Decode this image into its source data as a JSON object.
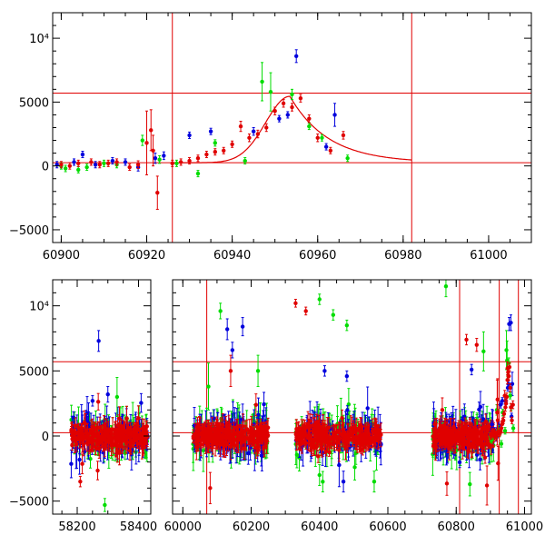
{
  "chart_data": [
    {
      "type": "scatter",
      "panel": "top",
      "xlim": [
        60898,
        61010
      ],
      "ylim": [
        -6000,
        12000
      ],
      "xticks": [
        60900,
        60920,
        60940,
        60960,
        60980,
        61000
      ],
      "yticks": [
        {
          "value": -5000,
          "label": "−5000"
        },
        {
          "value": 0,
          "label": "0"
        },
        {
          "value": 5000,
          "label": "5000"
        },
        {
          "value": 10000,
          "label": "10⁴"
        }
      ],
      "hlines": [
        5700,
        250
      ],
      "vlines": [
        60926,
        60982
      ],
      "model_curve": {
        "t0": 60953.5,
        "peak": 5450,
        "base": 250,
        "rise_days": 8,
        "decay_days": 9
      },
      "colors": {
        "blue": "#0000dd",
        "green": "#00dd00",
        "red": "#e00000"
      },
      "series": [
        {
          "color": "blue",
          "points": [
            [
              60899,
              100,
              250
            ],
            [
              60903,
              300,
              250
            ],
            [
              60905,
              900,
              250
            ],
            [
              60908,
              100,
              250
            ],
            [
              60912,
              400,
              250
            ],
            [
              60915,
              300,
              250
            ],
            [
              60918,
              -100,
              300
            ],
            [
              60922,
              600,
              400
            ],
            [
              60924,
              800,
              300
            ],
            [
              60930,
              2400,
              250
            ],
            [
              60935,
              2700,
              250
            ],
            [
              60945,
              2700,
              300
            ],
            [
              60951,
              3700,
              250
            ],
            [
              60953,
              4000,
              250
            ],
            [
              60955,
              8600,
              500
            ],
            [
              60962,
              1500,
              250
            ],
            [
              60964,
              4000,
              900
            ]
          ]
        },
        {
          "color": "green",
          "points": [
            [
              60900,
              0,
              250
            ],
            [
              60901,
              -200,
              250
            ],
            [
              60904,
              -300,
              250
            ],
            [
              60906,
              -100,
              250
            ],
            [
              60910,
              200,
              250
            ],
            [
              60913,
              100,
              250
            ],
            [
              60919,
              2000,
              400
            ],
            [
              60923,
              500,
              300
            ],
            [
              60927,
              200,
              250
            ],
            [
              60932,
              -600,
              250
            ],
            [
              60936,
              1800,
              250
            ],
            [
              60943,
              400,
              250
            ],
            [
              60947,
              6600,
              1500
            ],
            [
              60949,
              5800,
              1500
            ],
            [
              60954,
              5600,
              400
            ],
            [
              60958,
              3100,
              250
            ],
            [
              60961,
              2200,
              250
            ],
            [
              60967,
              600,
              250
            ]
          ]
        },
        {
          "color": "red",
          "points": [
            [
              60900,
              100,
              250
            ],
            [
              60902,
              0,
              250
            ],
            [
              60904,
              200,
              250
            ],
            [
              60907,
              300,
              250
            ],
            [
              60909,
              100,
              250
            ],
            [
              60911,
              200,
              250
            ],
            [
              60913,
              300,
              250
            ],
            [
              60916,
              -100,
              250
            ],
            [
              60918,
              100,
              300
            ],
            [
              60920,
              1800,
              2500
            ],
            [
              60921,
              2800,
              1600
            ],
            [
              60921.5,
              1200,
              1200
            ],
            [
              60922.5,
              -2100,
              1300
            ],
            [
              60926,
              200,
              250
            ],
            [
              60928,
              300,
              250
            ],
            [
              60930,
              400,
              250
            ],
            [
              60932,
              600,
              250
            ],
            [
              60934,
              900,
              250
            ],
            [
              60936,
              1100,
              250
            ],
            [
              60938,
              1200,
              250
            ],
            [
              60940,
              1700,
              250
            ],
            [
              60942,
              3100,
              400
            ],
            [
              60944,
              2200,
              300
            ],
            [
              60946,
              2500,
              300
            ],
            [
              60948,
              3000,
              300
            ],
            [
              60950,
              4300,
              300
            ],
            [
              60952,
              4900,
              300
            ],
            [
              60954,
              4600,
              300
            ],
            [
              60956,
              5300,
              300
            ],
            [
              60958,
              3700,
              300
            ],
            [
              60960,
              2200,
              300
            ],
            [
              60963,
              1200,
              250
            ],
            [
              60966,
              2400,
              300
            ]
          ]
        }
      ]
    },
    {
      "type": "scatter",
      "panel": "bottom",
      "segments": [
        {
          "xlim": [
            58120,
            58440
          ],
          "xticks": [
            58200,
            58400
          ]
        },
        {
          "xlim": [
            59970,
            61020
          ],
          "xticks": [
            60000,
            60200,
            60400,
            60600,
            60800,
            61000
          ]
        }
      ],
      "ylim": [
        -6000,
        12000
      ],
      "yticks": [
        {
          "value": -5000,
          "label": "−5000"
        },
        {
          "value": 0,
          "label": "0"
        },
        {
          "value": 5000,
          "label": "5000"
        },
        {
          "value": 10000,
          "label": "10⁴"
        }
      ],
      "hlines": [
        5700,
        250
      ],
      "vlines": [
        60070,
        60810,
        60926,
        60982
      ],
      "dense_blocks": [
        {
          "x_range": [
            58180,
            58430
          ],
          "sd": 650
        },
        {
          "x_range": [
            60030,
            60250
          ],
          "sd": 650
        },
        {
          "x_range": [
            60330,
            60580
          ],
          "sd": 650
        },
        {
          "x_range": [
            60730,
            60910
          ],
          "sd": 600
        }
      ],
      "outliers": [
        {
          "color": "blue",
          "x": 58270,
          "y": 7300,
          "e": 800
        },
        {
          "color": "blue",
          "x": 58300,
          "y": 3200,
          "e": 600
        },
        {
          "color": "blue",
          "x": 58250,
          "y": 2700,
          "e": 400
        },
        {
          "color": "blue",
          "x": 60130,
          "y": 8200,
          "e": 800
        },
        {
          "color": "blue",
          "x": 60175,
          "y": 8400,
          "e": 700
        },
        {
          "color": "blue",
          "x": 60145,
          "y": 6600,
          "e": 600
        },
        {
          "color": "blue",
          "x": 60415,
          "y": 5000,
          "e": 400
        },
        {
          "color": "blue",
          "x": 60480,
          "y": 4600,
          "e": 400
        },
        {
          "color": "blue",
          "x": 60845,
          "y": 5100,
          "e": 400
        },
        {
          "color": "blue",
          "x": 60960,
          "y": 8700,
          "e": 600
        },
        {
          "color": "blue",
          "x": 60230,
          "y": -1500,
          "e": 800
        },
        {
          "color": "blue",
          "x": 60470,
          "y": -3500,
          "e": 800
        },
        {
          "color": "blue",
          "x": 60870,
          "y": -1800,
          "e": 800
        },
        {
          "color": "green",
          "x": 60110,
          "y": 9600,
          "e": 600
        },
        {
          "color": "green",
          "x": 60400,
          "y": 10500,
          "e": 400
        },
        {
          "color": "green",
          "x": 60440,
          "y": 9300,
          "e": 400
        },
        {
          "color": "green",
          "x": 60480,
          "y": 8500,
          "e": 400
        },
        {
          "color": "green",
          "x": 60770,
          "y": 11500,
          "e": 800
        },
        {
          "color": "green",
          "x": 60075,
          "y": 3800,
          "e": 1800
        },
        {
          "color": "green",
          "x": 60220,
          "y": 5000,
          "e": 1200
        },
        {
          "color": "green",
          "x": 60880,
          "y": 6500,
          "e": 1500
        },
        {
          "color": "green",
          "x": 58330,
          "y": 3000,
          "e": 1500
        },
        {
          "color": "green",
          "x": 60400,
          "y": -3000,
          "e": 800
        },
        {
          "color": "green",
          "x": 60560,
          "y": -3500,
          "e": 800
        },
        {
          "color": "green",
          "x": 58290,
          "y": -5300,
          "e": 500
        },
        {
          "color": "green",
          "x": 60840,
          "y": -3700,
          "e": 900
        },
        {
          "color": "red",
          "x": 60330,
          "y": 10200,
          "e": 300
        },
        {
          "color": "red",
          "x": 60360,
          "y": 9600,
          "e": 300
        },
        {
          "color": "red",
          "x": 60830,
          "y": 7400,
          "e": 400
        },
        {
          "color": "red",
          "x": 60860,
          "y": 7000,
          "e": 500
        },
        {
          "color": "red",
          "x": 60950,
          "y": 5200,
          "e": 500
        },
        {
          "color": "red",
          "x": 60140,
          "y": 5000,
          "e": 1200
        },
        {
          "color": "red",
          "x": 58210,
          "y": -3500,
          "e": 400
        },
        {
          "color": "red",
          "x": 60080,
          "y": -4000,
          "e": 1200
        },
        {
          "color": "red",
          "x": 60890,
          "y": -3800,
          "e": 1500
        }
      ]
    }
  ]
}
